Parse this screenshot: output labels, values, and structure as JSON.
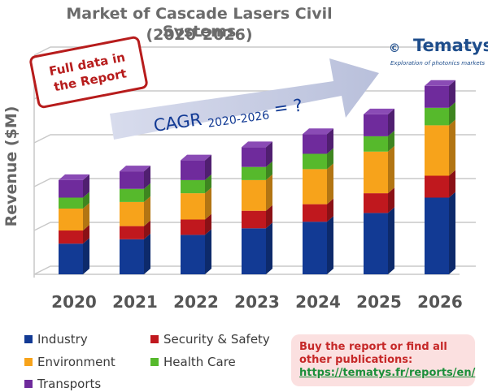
{
  "header": {
    "title_line1": "Market of Cascade Lasers Civil Systems",
    "title_line2": "(2020-2026)"
  },
  "stamp": {
    "line1": "Full data in",
    "line2": "the Report"
  },
  "logo": {
    "copyright": "©",
    "name": "Tematys",
    "tagline": "Exploration of photonics markets"
  },
  "cagr": {
    "label": "CAGR",
    "period": "2020-2026",
    "suffix": "= ?"
  },
  "chart_data": {
    "type": "bar",
    "stacked": true,
    "ylabel": "Revenue ($M)",
    "categories": [
      "2020",
      "2021",
      "2022",
      "2023",
      "2024",
      "2025",
      "2026"
    ],
    "series": [
      {
        "name": "Industry",
        "color": "#123a94",
        "values": [
          14,
          16,
          18,
          21,
          24,
          28,
          35
        ]
      },
      {
        "name": "Security & Safety",
        "color": "#c0181e",
        "values": [
          6,
          6,
          7,
          8,
          8,
          9,
          10
        ]
      },
      {
        "name": "Environment",
        "color": "#f7a31b",
        "values": [
          10,
          11,
          12,
          14,
          16,
          19,
          23
        ]
      },
      {
        "name": "Health Care",
        "color": "#56b92c",
        "values": [
          5,
          6,
          6,
          6,
          7,
          7,
          8
        ]
      },
      {
        "name": "Transports",
        "color": "#6f2b9c",
        "values": [
          8,
          8,
          9,
          9,
          9,
          10,
          10
        ]
      }
    ],
    "ylim": [
      0,
      100
    ],
    "ytick_count": 5,
    "grid": true,
    "legend_position": "bottom-left"
  },
  "cta": {
    "line1": "Buy the report or find all",
    "line2": "other publications:",
    "link": "https://tematys.fr/reports/en/"
  }
}
